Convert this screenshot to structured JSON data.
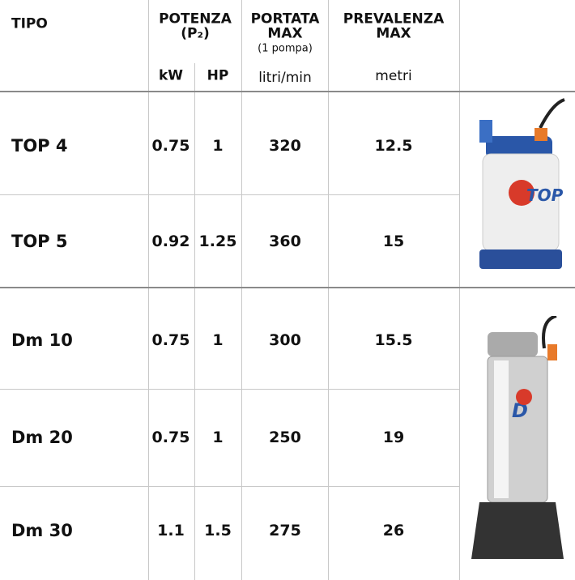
{
  "header": {
    "tipo": "TIPO",
    "potenza": "POTENZA",
    "potenza_unit": "(P₂)",
    "kw": "kW",
    "hp": "HP",
    "portata": "PORTATA",
    "portata_max": "MAX",
    "portata_note": "(1 pompa)",
    "portata_unit": "litri/min",
    "prevalenza": "PREVALENZA",
    "prevalenza_max": "MAX",
    "prevalenza_unit": "metri"
  },
  "table": {
    "rows": [
      [
        "TOP 4",
        "0.75",
        "1",
        "320",
        "12.5"
      ],
      [
        "TOP 5",
        "0.92",
        "1.25",
        "360",
        "15"
      ],
      [
        "Dm 10",
        "0.75",
        "1",
        "300",
        "15.5"
      ],
      [
        "Dm 20",
        "0.75",
        "1",
        "250",
        "19"
      ],
      [
        "Dm 30",
        "1.1",
        "1.5",
        "275",
        "26"
      ]
    ]
  }
}
